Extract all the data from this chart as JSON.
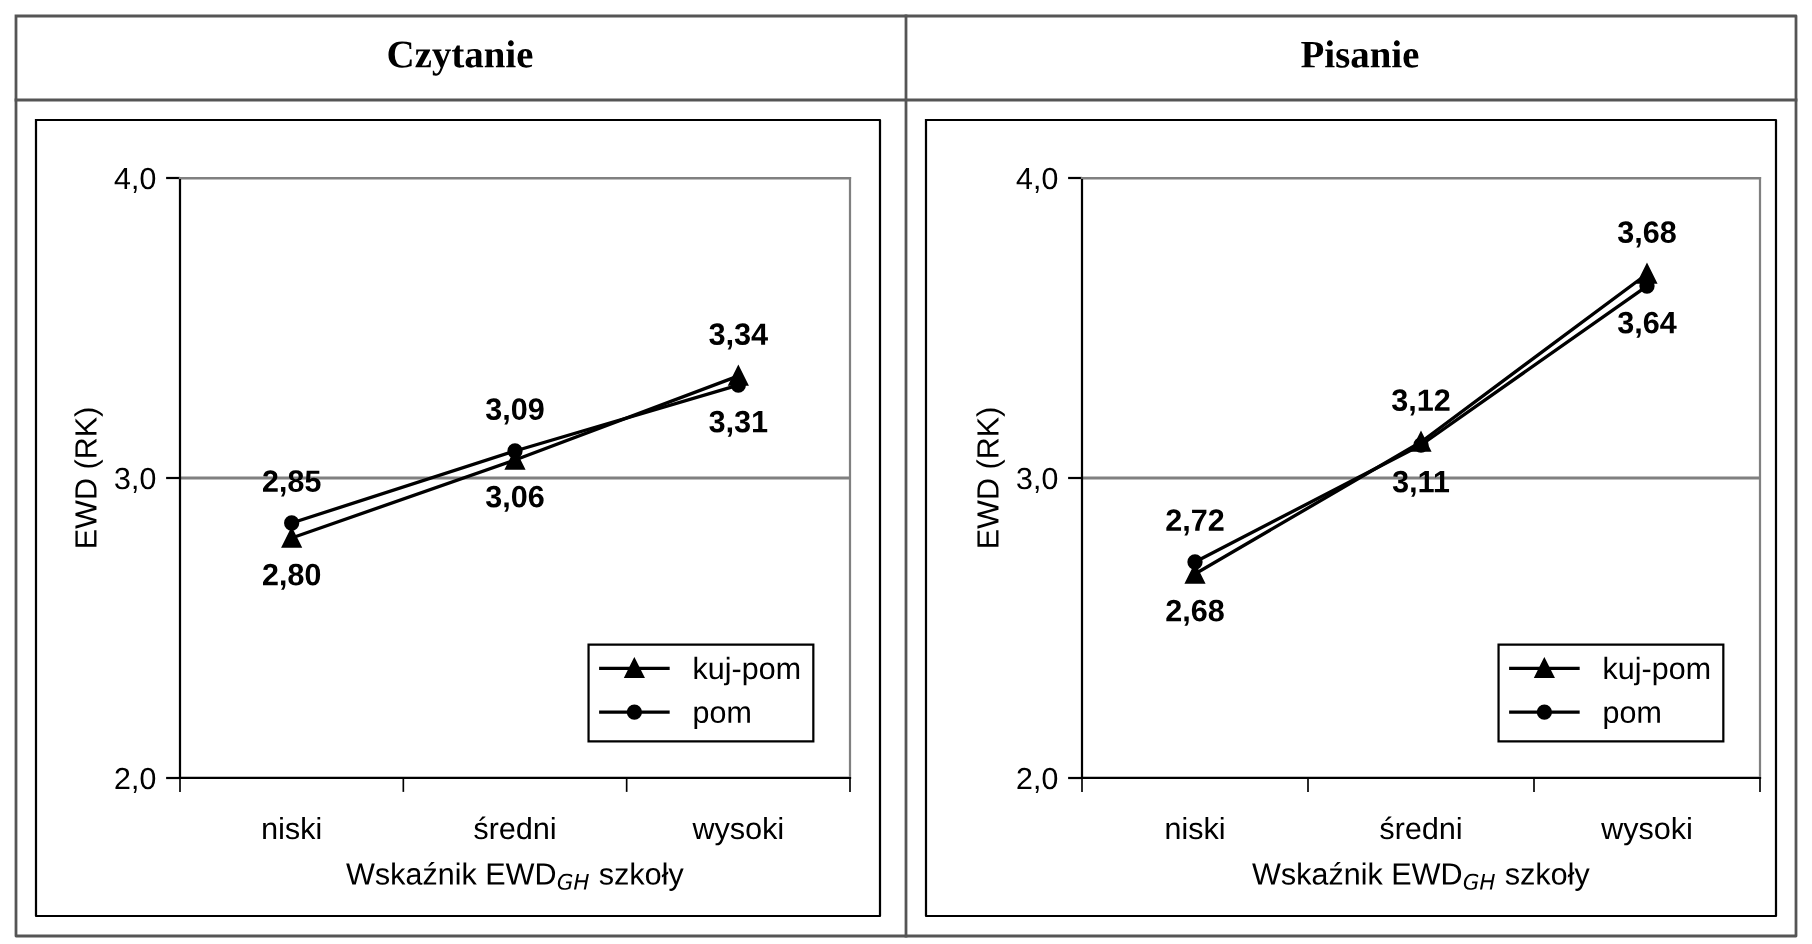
{
  "chart_data": [
    {
      "type": "line",
      "title": "Czytanie",
      "xlabel": "Wskaźnik EWD$_{GH}$ szkoły",
      "ylabel": "EWD (RK)",
      "categories": [
        "niski",
        "średni",
        "wysoki"
      ],
      "series": [
        {
          "name": "kuj-pom",
          "color": "#000000",
          "marker": "triangle",
          "values": [
            2.8,
            3.06,
            3.34
          ],
          "value_labels": [
            "2,80",
            "3,06",
            "3,34"
          ]
        },
        {
          "name": "pom",
          "color": "#000000",
          "marker": "circle",
          "values": [
            2.85,
            3.09,
            3.31
          ],
          "value_labels": [
            "2,85",
            "3,09",
            "3,31"
          ]
        }
      ],
      "ylim": [
        2.0,
        4.0
      ],
      "yticks": [
        {
          "value": 2.0,
          "label": "2,0"
        },
        {
          "value": 3.0,
          "label": "3,0"
        },
        {
          "value": 4.0,
          "label": "4,0"
        }
      ],
      "grid": "y",
      "legend": "bottom right",
      "line_style": "solid"
    },
    {
      "type": "line",
      "title": "Pisanie",
      "xlabel": "Wskaźnik EWD$_{GH}$ szkoły",
      "ylabel": "EWD (RK)",
      "categories": [
        "niski",
        "średni",
        "wysoki"
      ],
      "series": [
        {
          "name": "kuj-pom",
          "color": "#000000",
          "marker": "triangle",
          "values": [
            2.68,
            3.12,
            3.68
          ],
          "value_labels": [
            "2,68",
            "3,12",
            "3,68"
          ]
        },
        {
          "name": "pom",
          "color": "#000000",
          "marker": "circle",
          "values": [
            2.72,
            3.11,
            3.64
          ],
          "value_labels": [
            "2,72",
            "3,11",
            "3,64"
          ]
        }
      ],
      "ylim": [
        2.0,
        4.0
      ],
      "yticks": [
        {
          "value": 2.0,
          "label": "2,0"
        },
        {
          "value": 3.0,
          "label": "3,0"
        },
        {
          "value": 4.0,
          "label": "4,0"
        }
      ],
      "grid": "y",
      "legend": "bottom right",
      "line_style": "solid"
    }
  ]
}
